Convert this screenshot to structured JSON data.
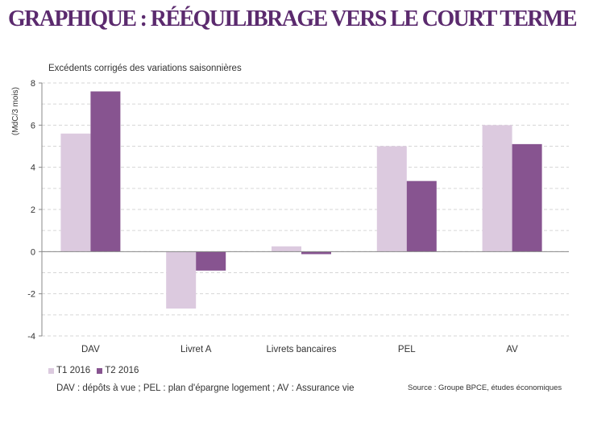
{
  "header": {
    "title": "GRAPHIQUE : RÉÉQUILIBRAGE VERS LE COURT TERME"
  },
  "chart_data": {
    "type": "bar",
    "subtitle": "Excédents corrigés des variations saisonnières",
    "ylabel": "(MdC/3 mois)",
    "ylim": [
      -4,
      8
    ],
    "yticks": [
      -4,
      -2,
      0,
      2,
      4,
      6,
      8
    ],
    "categories": [
      "DAV",
      "Livret A",
      "Livrets bancaires",
      "PEL",
      "AV"
    ],
    "series": [
      {
        "name": "T1 2016",
        "color": "#dccadf",
        "values": [
          5.6,
          -2.7,
          0.25,
          5.0,
          6.0
        ]
      },
      {
        "name": "T2 2016",
        "color": "#875490",
        "values": [
          7.6,
          -0.9,
          -0.12,
          3.35,
          5.1
        ]
      }
    ],
    "grid": true,
    "legend_position": "bottom-left"
  },
  "footnote": "DAV : dépôts à vue ; PEL : plan d'épargne logement ; AV : Assurance vie",
  "source": "Source : Groupe BPCE, études économiques"
}
